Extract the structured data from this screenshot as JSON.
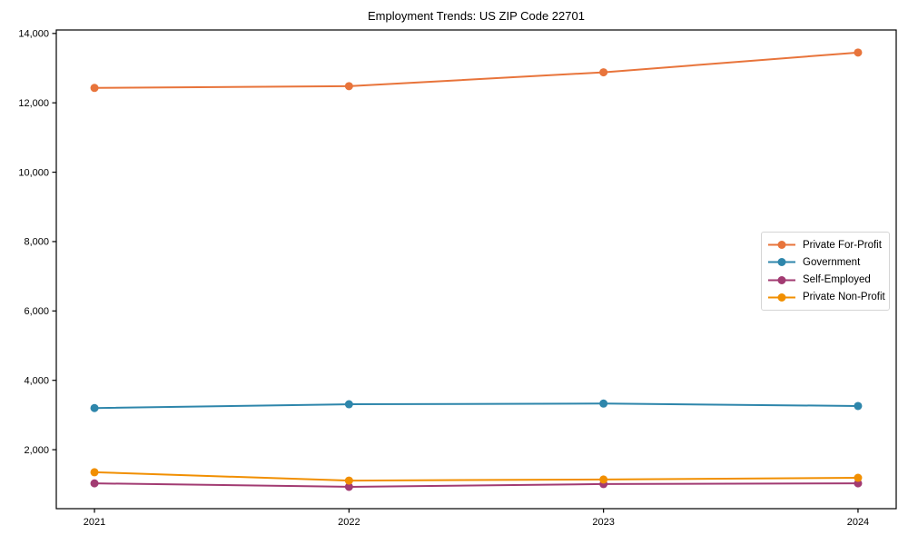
{
  "figure": {
    "background": "#ffffff",
    "axis_color": "#000000",
    "legend_border_color": "#d5d5d5"
  },
  "chart_data": {
    "type": "line",
    "title": "Employment Trends: US ZIP Code 22701",
    "xlabel": "",
    "ylabel": "",
    "x": [
      2021,
      2022,
      2023,
      2024
    ],
    "x_labels": [
      "2021",
      "2022",
      "2023",
      "2024"
    ],
    "series": [
      {
        "name": "Private For-Profit",
        "color": "#E8743B",
        "values": [
          12430,
          12480,
          12880,
          13450
        ]
      },
      {
        "name": "Government",
        "color": "#2E86AB",
        "values": [
          3200,
          3310,
          3330,
          3260
        ]
      },
      {
        "name": "Self-Employed",
        "color": "#A23B72",
        "values": [
          1030,
          930,
          1010,
          1030
        ]
      },
      {
        "name": "Private Non-Profit",
        "color": "#F18F01",
        "values": [
          1350,
          1110,
          1140,
          1190
        ]
      }
    ],
    "ylim": [
      300,
      14100
    ],
    "xlim": [
      2020.85,
      2024.15
    ],
    "yticks": [
      2000,
      4000,
      6000,
      8000,
      10000,
      12000,
      14000
    ],
    "ytick_labels": [
      "2,000",
      "4,000",
      "6,000",
      "8,000",
      "10,000",
      "12,000",
      "14,000"
    ],
    "grid": false,
    "legend": {
      "position": "center-right"
    },
    "marker": "circle",
    "line_width": 2,
    "marker_radius": 4.5
  }
}
